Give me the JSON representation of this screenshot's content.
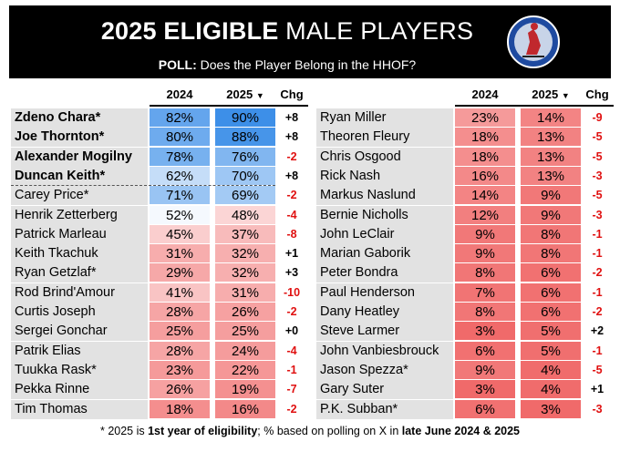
{
  "header": {
    "title_bold": "2025 ELIGIBLE",
    "title_rest": " MALE PLAYERS",
    "poll_label": "POLL:",
    "poll_question": " Does the Player Belong in the HHOF?",
    "logo": "hhof-logo-icon"
  },
  "columns": {
    "y2024": "2024",
    "y2025": "2025",
    "sort_icon": "▼",
    "chg": "Chg"
  },
  "left_players": [
    {
      "name": "Zdeno Chara*",
      "bold": true,
      "v2024": "82%",
      "v2025": "90%",
      "chg": "+8",
      "p2024": 82,
      "p2025": 90
    },
    {
      "name": "Joe Thornton*",
      "bold": true,
      "v2024": "80%",
      "v2025": "88%",
      "chg": "+8",
      "p2024": 80,
      "p2025": 88
    },
    {
      "name": "Alexander Mogilny",
      "bold": true,
      "v2024": "78%",
      "v2025": "76%",
      "chg": "-2",
      "p2024": 78,
      "p2025": 76
    },
    {
      "name": "Duncan Keith*",
      "bold": true,
      "v2024": "62%",
      "v2025": "70%",
      "chg": "+8",
      "p2024": 62,
      "p2025": 70
    },
    {
      "name": "Carey Price*",
      "bold": false,
      "v2024": "71%",
      "v2025": "69%",
      "chg": "-2",
      "p2024": 71,
      "p2025": 69
    },
    {
      "name": "Henrik Zetterberg",
      "bold": false,
      "v2024": "52%",
      "v2025": "48%",
      "chg": "-4",
      "p2024": 52,
      "p2025": 48
    },
    {
      "name": "Patrick Marleau",
      "bold": false,
      "v2024": "45%",
      "v2025": "37%",
      "chg": "-8",
      "p2024": 45,
      "p2025": 37
    },
    {
      "name": "Keith Tkachuk",
      "bold": false,
      "v2024": "31%",
      "v2025": "32%",
      "chg": "+1",
      "p2024": 31,
      "p2025": 32
    },
    {
      "name": "Ryan Getzlaf*",
      "bold": false,
      "v2024": "29%",
      "v2025": "32%",
      "chg": "+3",
      "p2024": 29,
      "p2025": 32
    },
    {
      "name": "Rod Brind'Amour",
      "bold": false,
      "v2024": "41%",
      "v2025": "31%",
      "chg": "-10",
      "p2024": 41,
      "p2025": 31
    },
    {
      "name": "Curtis Joseph",
      "bold": false,
      "v2024": "28%",
      "v2025": "26%",
      "chg": "-2",
      "p2024": 28,
      "p2025": 26
    },
    {
      "name": "Sergei Gonchar",
      "bold": false,
      "v2024": "25%",
      "v2025": "25%",
      "chg": "+0",
      "p2024": 25,
      "p2025": 25
    },
    {
      "name": "Patrik Elias",
      "bold": false,
      "v2024": "28%",
      "v2025": "24%",
      "chg": "-4",
      "p2024": 28,
      "p2025": 24
    },
    {
      "name": "Tuukka Rask*",
      "bold": false,
      "v2024": "23%",
      "v2025": "22%",
      "chg": "-1",
      "p2024": 23,
      "p2025": 22
    },
    {
      "name": "Pekka Rinne",
      "bold": false,
      "v2024": "26%",
      "v2025": "19%",
      "chg": "-7",
      "p2024": 26,
      "p2025": 19
    },
    {
      "name": "Tim Thomas",
      "bold": false,
      "v2024": "18%",
      "v2025": "16%",
      "chg": "-2",
      "p2024": 18,
      "p2025": 16
    }
  ],
  "right_players": [
    {
      "name": "Ryan Miller",
      "bold": false,
      "v2024": "23%",
      "v2025": "14%",
      "chg": "-9",
      "p2024": 23,
      "p2025": 14
    },
    {
      "name": "Theoren Fleury",
      "bold": false,
      "v2024": "18%",
      "v2025": "13%",
      "chg": "-5",
      "p2024": 18,
      "p2025": 13
    },
    {
      "name": "Chris Osgood",
      "bold": false,
      "v2024": "18%",
      "v2025": "13%",
      "chg": "-5",
      "p2024": 18,
      "p2025": 13
    },
    {
      "name": "Rick Nash",
      "bold": false,
      "v2024": "16%",
      "v2025": "13%",
      "chg": "-3",
      "p2024": 16,
      "p2025": 13
    },
    {
      "name": "Markus Naslund",
      "bold": false,
      "v2024": "14%",
      "v2025": "9%",
      "chg": "-5",
      "p2024": 14,
      "p2025": 9
    },
    {
      "name": "Bernie Nicholls",
      "bold": false,
      "v2024": "12%",
      "v2025": "9%",
      "chg": "-3",
      "p2024": 12,
      "p2025": 9
    },
    {
      "name": "John LeClair",
      "bold": false,
      "v2024": "9%",
      "v2025": "8%",
      "chg": "-1",
      "p2024": 9,
      "p2025": 8
    },
    {
      "name": "Marian Gaborik",
      "bold": false,
      "v2024": "9%",
      "v2025": "8%",
      "chg": "-1",
      "p2024": 9,
      "p2025": 8
    },
    {
      "name": "Peter Bondra",
      "bold": false,
      "v2024": "8%",
      "v2025": "6%",
      "chg": "-2",
      "p2024": 8,
      "p2025": 6
    },
    {
      "name": "Paul Henderson",
      "bold": false,
      "v2024": "7%",
      "v2025": "6%",
      "chg": "-1",
      "p2024": 7,
      "p2025": 6
    },
    {
      "name": "Dany Heatley",
      "bold": false,
      "v2024": "8%",
      "v2025": "6%",
      "chg": "-2",
      "p2024": 8,
      "p2025": 6
    },
    {
      "name": "Steve Larmer",
      "bold": false,
      "v2024": "3%",
      "v2025": "5%",
      "chg": "+2",
      "p2024": 3,
      "p2025": 5
    },
    {
      "name": "John Vanbiesbrouck",
      "bold": false,
      "v2024": "6%",
      "v2025": "5%",
      "chg": "-1",
      "p2024": 6,
      "p2025": 5
    },
    {
      "name": "Jason Spezza*",
      "bold": false,
      "v2024": "9%",
      "v2025": "4%",
      "chg": "-5",
      "p2024": 9,
      "p2025": 4
    },
    {
      "name": "Gary Suter",
      "bold": false,
      "v2024": "3%",
      "v2025": "4%",
      "chg": "+1",
      "p2024": 3,
      "p2025": 4
    },
    {
      "name": "P.K. Subban*",
      "bold": false,
      "v2024": "6%",
      "v2025": "3%",
      "chg": "-3",
      "p2024": 6,
      "p2025": 3
    }
  ],
  "footer": {
    "part1": "* 2025 is ",
    "part2": "1st year of eligibility",
    "part3": "; % based on polling on X in ",
    "part4": "late June 2024 & 2025"
  },
  "colors": {
    "high": "#3d8fe8",
    "mid": "#ffffff",
    "low": "#f06a6a",
    "neg_text": "#e01010",
    "header_bg": "#000000",
    "name_bg": "#e2e2e2"
  }
}
